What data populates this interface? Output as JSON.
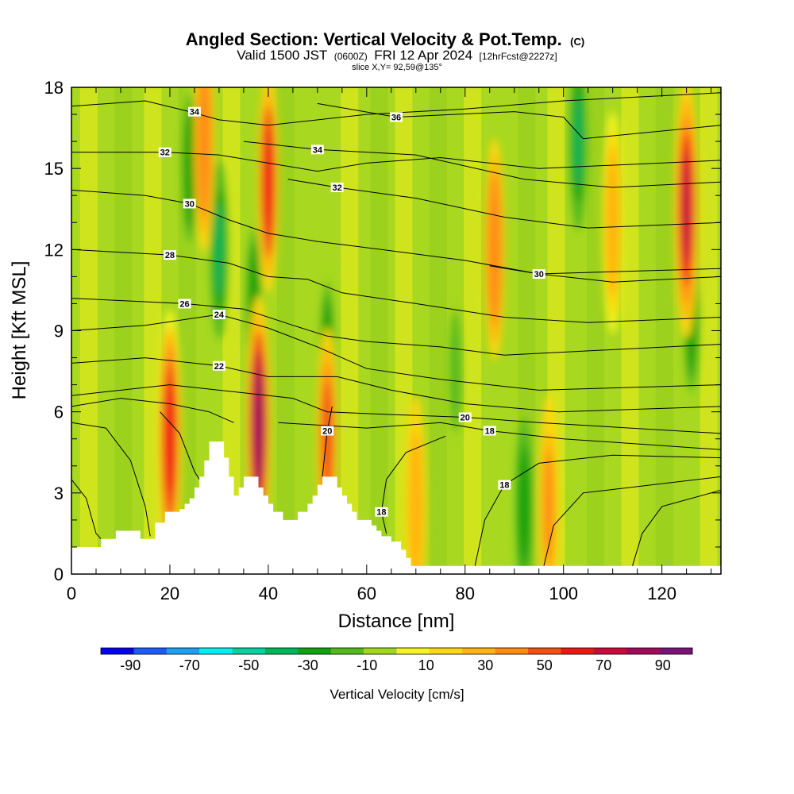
{
  "title": {
    "main": "Angled Section: Vertical Velocity & Pot.Temp.",
    "main_suffix": "(C)",
    "valid_a": "Valid 1500 JST",
    "valid_b": "(0600Z)",
    "valid_c": "FRI 12 Apr 2024",
    "valid_d": "[12hrFcst@2227z]",
    "slice": "slice X,Y= 92,59@135°"
  },
  "chart_data": {
    "type": "heatmap",
    "xlabel": "Distance [nm]",
    "ylabel": "Height [Kft MSL]",
    "xlim": [
      0,
      132
    ],
    "ylim": [
      0,
      18
    ],
    "x_ticks": [
      0,
      20,
      40,
      60,
      80,
      100,
      120
    ],
    "y_ticks": [
      0,
      3,
      6,
      9,
      12,
      15,
      18
    ],
    "colorbar": {
      "label": "Vertical Velocity [cm/s]",
      "ticks": [
        -90,
        -70,
        -50,
        -30,
        -10,
        10,
        30,
        50,
        70,
        90
      ],
      "range": [
        -100,
        100
      ],
      "colors": [
        "#0000f5",
        "#1c5cf5",
        "#1ea0f0",
        "#00f0f0",
        "#00d2a0",
        "#00b45a",
        "#10a010",
        "#55b91e",
        "#a0d71e",
        "#f5f51e",
        "#ffd70f",
        "#ffb40f",
        "#ff8c14",
        "#f05014",
        "#f01414",
        "#c80a3c",
        "#a00a5a",
        "#781478"
      ]
    },
    "terrain": [
      [
        0,
        1.0
      ],
      [
        5,
        1.0
      ],
      [
        6,
        1.3
      ],
      [
        8,
        1.3
      ],
      [
        9,
        1.6
      ],
      [
        13,
        1.6
      ],
      [
        14,
        1.3
      ],
      [
        16,
        1.3
      ],
      [
        17,
        1.9
      ],
      [
        19,
        2.3
      ],
      [
        21,
        2.3
      ],
      [
        22,
        2.4
      ],
      [
        23,
        2.6
      ],
      [
        24,
        2.8
      ],
      [
        25,
        3.2
      ],
      [
        26,
        3.6
      ],
      [
        27,
        4.2
      ],
      [
        28,
        4.9
      ],
      [
        30,
        4.9
      ],
      [
        31,
        4.3
      ],
      [
        32,
        3.6
      ],
      [
        33,
        2.9
      ],
      [
        34,
        3.2
      ],
      [
        35,
        3.6
      ],
      [
        37,
        3.6
      ],
      [
        38,
        3.2
      ],
      [
        39,
        2.9
      ],
      [
        40,
        2.6
      ],
      [
        41,
        2.3
      ],
      [
        42,
        2.3
      ],
      [
        43,
        2.0
      ],
      [
        45,
        2.0
      ],
      [
        46,
        2.3
      ],
      [
        47,
        2.3
      ],
      [
        48,
        2.6
      ],
      [
        49,
        2.9
      ],
      [
        50,
        3.3
      ],
      [
        51,
        3.6
      ],
      [
        53,
        3.6
      ],
      [
        54,
        3.2
      ],
      [
        55,
        2.9
      ],
      [
        56,
        2.6
      ],
      [
        57,
        2.3
      ],
      [
        58,
        2.0
      ],
      [
        60,
        2.0
      ],
      [
        61,
        1.8
      ],
      [
        62,
        1.6
      ],
      [
        63,
        1.4
      ],
      [
        65,
        1.2
      ],
      [
        67,
        0.9
      ],
      [
        68,
        0.6
      ],
      [
        69,
        0.3
      ],
      [
        132,
        0.3
      ]
    ],
    "updrafts": [
      {
        "x": 20,
        "z": 5.0,
        "w": 70
      },
      {
        "x": 27,
        "z": 16.0,
        "w": 45
      },
      {
        "x": 38,
        "z": 5.5,
        "w": 90
      },
      {
        "x": 40,
        "z": 14.5,
        "w": 60
      },
      {
        "x": 52,
        "z": 5.0,
        "w": 55
      },
      {
        "x": 86,
        "z": 12.0,
        "w": 45
      },
      {
        "x": 97,
        "z": 2.5,
        "w": 40
      },
      {
        "x": 110,
        "z": 13.0,
        "w": 30
      },
      {
        "x": 125,
        "z": 13.5,
        "w": 75
      },
      {
        "x": 70,
        "z": 2.5,
        "w": 35
      }
    ],
    "downdrafts": [
      {
        "x": 30,
        "z": 12.0,
        "w": -40
      },
      {
        "x": 24,
        "z": 15.0,
        "w": -30
      },
      {
        "x": 37,
        "z": 10.0,
        "w": -30
      },
      {
        "x": 52,
        "z": 8.0,
        "w": -30
      },
      {
        "x": 92,
        "z": 2.5,
        "w": -35
      },
      {
        "x": 103,
        "z": 16.0,
        "w": -40
      },
      {
        "x": 126,
        "z": 9.5,
        "w": -30
      },
      {
        "x": 78,
        "z": 7.5,
        "w": -20
      }
    ],
    "theta_contours": [
      {
        "label": "34",
        "label_at": [
          25,
          17.1
        ],
        "points": [
          [
            0,
            17.3
          ],
          [
            15,
            17.5
          ],
          [
            24,
            17.1
          ],
          [
            30,
            16.8
          ],
          [
            40,
            16.6
          ],
          [
            60,
            17.0
          ],
          [
            80,
            17.2
          ],
          [
            100,
            17.5
          ],
          [
            132,
            17.8
          ]
        ]
      },
      {
        "label": "36",
        "label_at": [
          66,
          16.9
        ],
        "points": [
          [
            50,
            17.4
          ],
          [
            66,
            16.9
          ],
          [
            90,
            17.1
          ],
          [
            100,
            16.9
          ],
          [
            104,
            16.1
          ],
          [
            132,
            16.6
          ]
        ]
      },
      {
        "label": "32",
        "label_at": [
          19,
          15.6
        ],
        "points": [
          [
            0,
            15.6
          ],
          [
            19,
            15.6
          ],
          [
            30,
            15.5
          ],
          [
            40,
            15.2
          ],
          [
            50,
            14.9
          ],
          [
            60,
            15.2
          ],
          [
            75,
            15.4
          ],
          [
            95,
            15.0
          ],
          [
            132,
            15.3
          ]
        ]
      },
      {
        "label": "34",
        "label_at": [
          50,
          15.7
        ],
        "points": [
          [
            35,
            16.0
          ],
          [
            50,
            15.7
          ],
          [
            70,
            15.5
          ],
          [
            92,
            14.6
          ],
          [
            110,
            14.3
          ],
          [
            132,
            14.5
          ]
        ]
      },
      {
        "label": "32",
        "label_at": [
          54,
          14.3
        ],
        "points": [
          [
            44,
            14.6
          ],
          [
            54,
            14.3
          ],
          [
            70,
            13.9
          ],
          [
            88,
            13.2
          ],
          [
            105,
            12.8
          ],
          [
            132,
            13.0
          ]
        ]
      },
      {
        "label": "30",
        "label_at": [
          24,
          13.7
        ],
        "points": [
          [
            0,
            14.2
          ],
          [
            15,
            14.0
          ],
          [
            24,
            13.7
          ],
          [
            32,
            13.1
          ],
          [
            40,
            12.6
          ],
          [
            50,
            12.3
          ],
          [
            63,
            12.0
          ],
          [
            80,
            11.6
          ],
          [
            95,
            11.1
          ],
          [
            132,
            11.3
          ]
        ]
      },
      {
        "label": "28",
        "label_at": [
          20,
          11.8
        ],
        "points": [
          [
            0,
            12.0
          ],
          [
            20,
            11.8
          ],
          [
            32,
            11.5
          ],
          [
            40,
            11.0
          ],
          [
            48,
            10.9
          ],
          [
            55,
            10.4
          ],
          [
            70,
            10.0
          ],
          [
            88,
            9.5
          ],
          [
            105,
            9.3
          ],
          [
            132,
            9.5
          ]
        ]
      },
      {
        "label": "30",
        "label_at": [
          95,
          11.1
        ],
        "points": [
          [
            85,
            11.4
          ],
          [
            95,
            11.1
          ],
          [
            110,
            10.8
          ],
          [
            132,
            11.0
          ]
        ]
      },
      {
        "label": "26",
        "label_at": [
          23,
          10.0
        ],
        "points": [
          [
            0,
            10.2
          ],
          [
            23,
            10.0
          ],
          [
            35,
            9.8
          ],
          [
            45,
            9.2
          ],
          [
            52,
            8.8
          ],
          [
            60,
            8.6
          ],
          [
            75,
            8.4
          ],
          [
            88,
            8.1
          ],
          [
            132,
            8.5
          ]
        ]
      },
      {
        "label": "24",
        "label_at": [
          30,
          9.6
        ],
        "points": [
          [
            0,
            9.0
          ],
          [
            15,
            9.2
          ],
          [
            30,
            9.6
          ],
          [
            40,
            9.1
          ],
          [
            50,
            8.4
          ],
          [
            60,
            7.6
          ],
          [
            75,
            7.2
          ],
          [
            95,
            6.8
          ],
          [
            132,
            7.0
          ]
        ]
      },
      {
        "label": "22",
        "label_at": [
          30,
          7.7
        ],
        "points": [
          [
            0,
            7.8
          ],
          [
            15,
            8.0
          ],
          [
            30,
            7.7
          ],
          [
            40,
            7.3
          ],
          [
            54,
            7.3
          ],
          [
            65,
            6.8
          ],
          [
            80,
            6.3
          ],
          [
            99,
            6.0
          ],
          [
            132,
            6.2
          ]
        ]
      },
      {
        "label": "20",
        "label_at": [
          80,
          5.8
        ],
        "points": [
          [
            0,
            6.6
          ],
          [
            20,
            7.0
          ],
          [
            35,
            6.7
          ],
          [
            45,
            6.5
          ],
          [
            52,
            6.0
          ],
          [
            65,
            5.9
          ],
          [
            80,
            5.8
          ],
          [
            95,
            5.6
          ],
          [
            132,
            5.2
          ]
        ]
      },
      {
        "label": "18",
        "label_at": [
          85,
          5.3
        ],
        "points": [
          [
            42,
            5.6
          ],
          [
            60,
            5.4
          ],
          [
            75,
            5.6
          ],
          [
            85,
            5.3
          ],
          [
            100,
            5.0
          ],
          [
            132,
            4.6
          ]
        ]
      },
      {
        "label": "18",
        "label_at": [
          88,
          3.3
        ],
        "points": [
          [
            82,
            0.3
          ],
          [
            84,
            2.0
          ],
          [
            88,
            3.3
          ],
          [
            95,
            4.1
          ],
          [
            110,
            4.4
          ],
          [
            132,
            4.3
          ]
        ]
      },
      {
        "label": "18",
        "label_at": [
          63,
          2.3
        ],
        "points": [
          [
            64,
            1.5
          ],
          [
            63,
            2.3
          ],
          [
            64,
            3.5
          ],
          [
            68,
            4.5
          ],
          [
            76,
            5.1
          ]
        ]
      },
      {
        "label": "20",
        "label_at": [
          52,
          5.3
        ],
        "points": [
          [
            51,
            3.6
          ],
          [
            52,
            5.3
          ],
          [
            53,
            6.2
          ]
        ]
      },
      {
        "label": "",
        "label_at": [
          0,
          0
        ],
        "points": [
          [
            0,
            3.5
          ],
          [
            3,
            2.8
          ],
          [
            5,
            1.5
          ],
          [
            6,
            1.3
          ]
        ]
      },
      {
        "label": "",
        "label_at": [
          0,
          0
        ],
        "points": [
          [
            0,
            5.6
          ],
          [
            7,
            5.4
          ],
          [
            12,
            4.2
          ],
          [
            15,
            2.5
          ],
          [
            16,
            1.4
          ]
        ]
      },
      {
        "label": "",
        "label_at": [
          0,
          0
        ],
        "points": [
          [
            18,
            6.0
          ],
          [
            22,
            5.2
          ],
          [
            25,
            3.8
          ],
          [
            26,
            3.5
          ]
        ]
      },
      {
        "label": "",
        "label_at": [
          0,
          0
        ],
        "points": [
          [
            0,
            6.2
          ],
          [
            10,
            6.5
          ],
          [
            20,
            6.3
          ],
          [
            28,
            6.0
          ],
          [
            33,
            5.6
          ]
        ]
      },
      {
        "label": "",
        "label_at": [
          0,
          0
        ],
        "points": [
          [
            114,
            0.3
          ],
          [
            116,
            1.5
          ],
          [
            120,
            2.5
          ],
          [
            132,
            3.1
          ]
        ]
      },
      {
        "label": "",
        "label_at": [
          0,
          0
        ],
        "points": [
          [
            96,
            0.3
          ],
          [
            98,
            1.8
          ],
          [
            104,
            3.0
          ],
          [
            132,
            3.6
          ]
        ]
      }
    ]
  }
}
